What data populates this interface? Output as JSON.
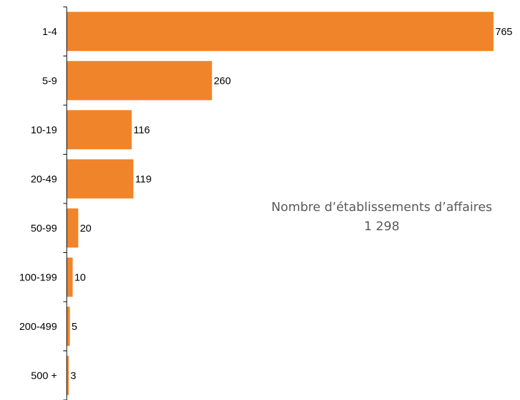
{
  "chart_data": {
    "type": "bar",
    "orientation": "horizontal",
    "categories": [
      "1-4",
      "5-9",
      "10-19",
      "20-49",
      "50-99",
      "100-199",
      "200-499",
      "500 +"
    ],
    "values": [
      765,
      260,
      116,
      119,
      20,
      10,
      5,
      3
    ],
    "bar_color": "#F0842A",
    "xlim": [
      0,
      765
    ],
    "grid": false,
    "legend": "none",
    "annotation": {
      "line1": "Nombre d’établissements d’affaires",
      "line2": "1 298"
    }
  }
}
